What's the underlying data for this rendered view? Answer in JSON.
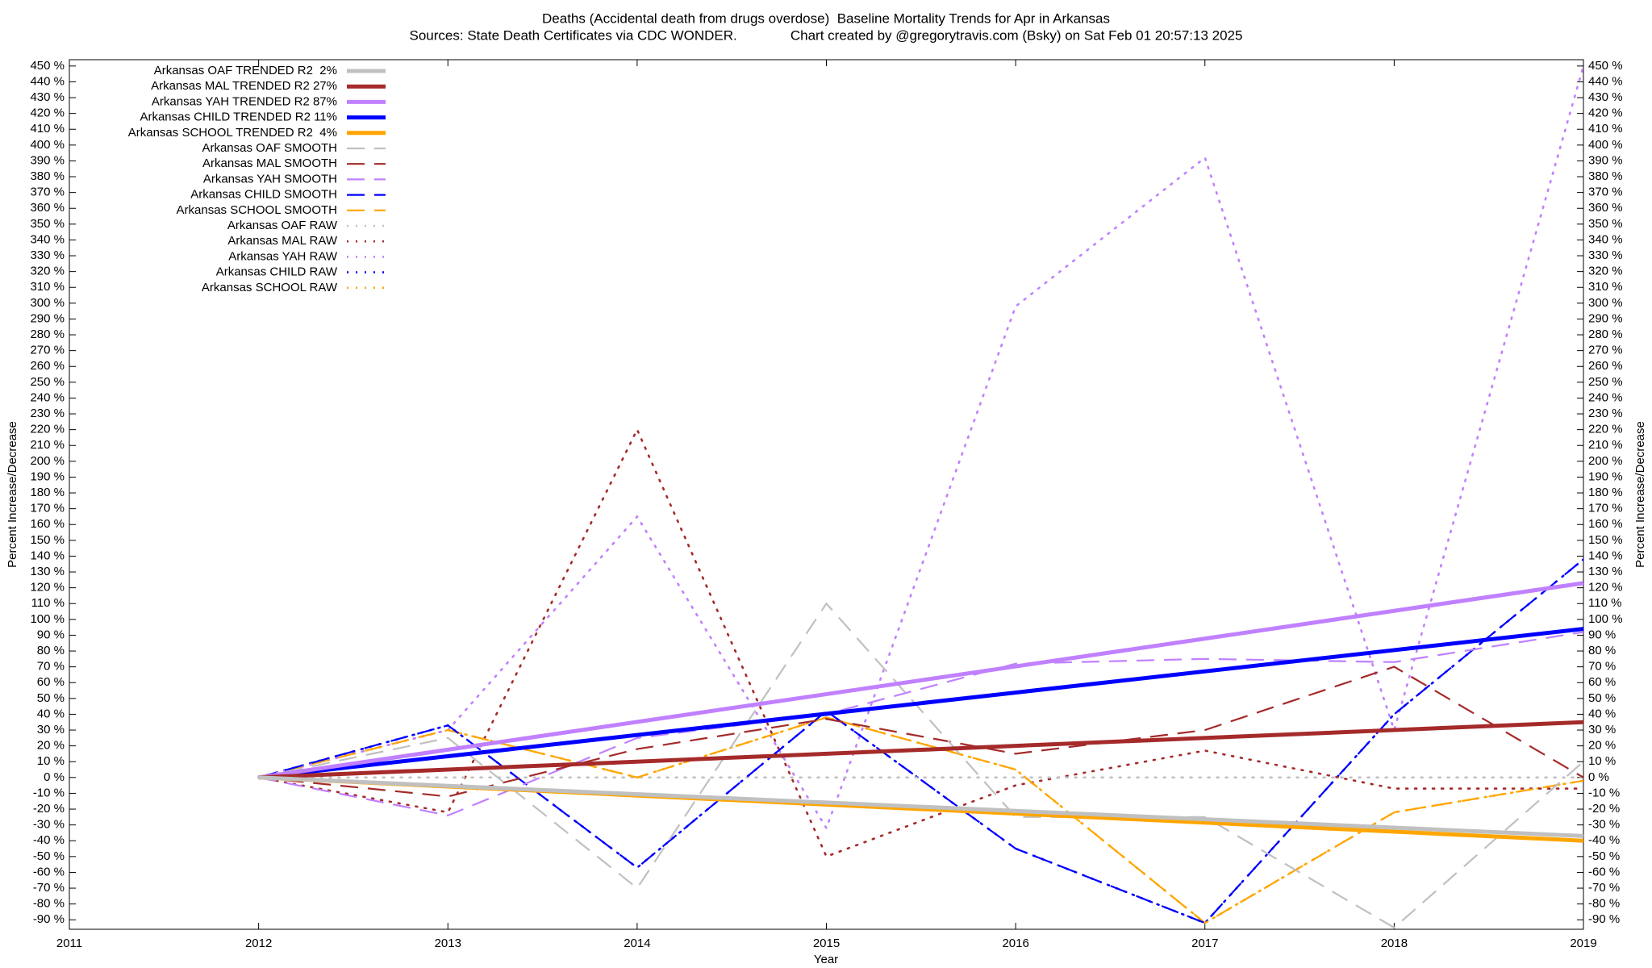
{
  "chart_data": {
    "type": "line",
    "title": "Deaths (Accidental death from drugs overdose)  Baseline Mortality Trends for Apr in Arkansas",
    "subtitle": "Sources: State Death Certificates via CDC WONDER.              Chart created by @gregorytravis.com (Bsky) on Sat Feb 01 20:57:13 2025",
    "xlabel": "Year",
    "ylabel": "Percent Increase/Decrease",
    "y2label": "Percent Increase/Decrease",
    "legend": "top-left",
    "grid": false,
    "xlim": [
      2011,
      2019
    ],
    "xticks": [
      2011,
      2012,
      2013,
      2014,
      2015,
      2016,
      2017,
      2018,
      2019
    ],
    "ylim": [
      -96,
      454
    ],
    "yticks": [
      {
        "value": -90,
        "label": "-90 %"
      },
      {
        "value": -80,
        "label": "-80 %"
      },
      {
        "value": -70,
        "label": "-70 %"
      },
      {
        "value": -60,
        "label": "-60 %"
      },
      {
        "value": -50,
        "label": "-50 %"
      },
      {
        "value": -40,
        "label": "-40 %"
      },
      {
        "value": -30,
        "label": "-30 %"
      },
      {
        "value": -20,
        "label": "-20 %"
      },
      {
        "value": -10,
        "label": "-10 %"
      },
      {
        "value": 0,
        "label": "0 %"
      },
      {
        "value": 10,
        "label": "10 %"
      },
      {
        "value": 20,
        "label": "20 %"
      },
      {
        "value": 30,
        "label": "30 %"
      },
      {
        "value": 40,
        "label": "40 %"
      },
      {
        "value": 50,
        "label": "50 %"
      },
      {
        "value": 60,
        "label": "60 %"
      },
      {
        "value": 70,
        "label": "70 %"
      },
      {
        "value": 80,
        "label": "80 %"
      },
      {
        "value": 90,
        "label": "90 %"
      },
      {
        "value": 100,
        "label": "100 %"
      },
      {
        "value": 110,
        "label": "110 %"
      },
      {
        "value": 120,
        "label": "120 %"
      },
      {
        "value": 130,
        "label": "130 %"
      },
      {
        "value": 140,
        "label": "140 %"
      },
      {
        "value": 150,
        "label": "150 %"
      },
      {
        "value": 160,
        "label": "160 %"
      },
      {
        "value": 170,
        "label": "170 %"
      },
      {
        "value": 180,
        "label": "180 %"
      },
      {
        "value": 190,
        "label": "190 %"
      },
      {
        "value": 200,
        "label": "200 %"
      },
      {
        "value": 210,
        "label": "210 %"
      },
      {
        "value": 220,
        "label": "220 %"
      },
      {
        "value": 230,
        "label": "230 %"
      },
      {
        "value": 240,
        "label": "240 %"
      },
      {
        "value": 250,
        "label": "250 %"
      },
      {
        "value": 260,
        "label": "260 %"
      },
      {
        "value": 270,
        "label": "270 %"
      },
      {
        "value": 280,
        "label": "280 %"
      },
      {
        "value": 290,
        "label": "290 %"
      },
      {
        "value": 300,
        "label": "300 %"
      },
      {
        "value": 310,
        "label": "310 %"
      },
      {
        "value": 320,
        "label": "320 %"
      },
      {
        "value": 330,
        "label": "330 %"
      },
      {
        "value": 340,
        "label": "340 %"
      },
      {
        "value": 350,
        "label": "350 %"
      },
      {
        "value": 360,
        "label": "360 %"
      },
      {
        "value": 370,
        "label": "370 %"
      },
      {
        "value": 380,
        "label": "380 %"
      },
      {
        "value": 390,
        "label": "390 %"
      },
      {
        "value": 400,
        "label": "400 %"
      },
      {
        "value": 410,
        "label": "410 %"
      },
      {
        "value": 420,
        "label": "420 %"
      },
      {
        "value": 430,
        "label": "430 %"
      },
      {
        "value": 440,
        "label": "440 %"
      },
      {
        "value": 450,
        "label": "450 %"
      }
    ],
    "y2lim": [
      -96,
      454
    ],
    "y2ticks": [
      {
        "value": -90,
        "label": "-90 %"
      },
      {
        "value": -80,
        "label": "-80 %"
      },
      {
        "value": -70,
        "label": "-70 %"
      },
      {
        "value": -60,
        "label": "-60 %"
      },
      {
        "value": -50,
        "label": "-50 %"
      },
      {
        "value": -40,
        "label": "-40 %"
      },
      {
        "value": -30,
        "label": "-30 %"
      },
      {
        "value": -20,
        "label": "-20 %"
      },
      {
        "value": -10,
        "label": "-10 %"
      },
      {
        "value": 0,
        "label": "0 %"
      },
      {
        "value": 10,
        "label": "10 %"
      },
      {
        "value": 20,
        "label": "20 %"
      },
      {
        "value": 30,
        "label": "30 %"
      },
      {
        "value": 40,
        "label": "40 %"
      },
      {
        "value": 50,
        "label": "50 %"
      },
      {
        "value": 60,
        "label": "60 %"
      },
      {
        "value": 70,
        "label": "70 %"
      },
      {
        "value": 80,
        "label": "80 %"
      },
      {
        "value": 90,
        "label": "90 %"
      },
      {
        "value": 100,
        "label": "100 %"
      },
      {
        "value": 110,
        "label": "110 %"
      },
      {
        "value": 120,
        "label": "120 %"
      },
      {
        "value": 130,
        "label": "130 %"
      },
      {
        "value": 140,
        "label": "140 %"
      },
      {
        "value": 150,
        "label": "150 %"
      },
      {
        "value": 160,
        "label": "160 %"
      },
      {
        "value": 170,
        "label": "170 %"
      },
      {
        "value": 180,
        "label": "180 %"
      },
      {
        "value": 190,
        "label": "190 %"
      },
      {
        "value": 200,
        "label": "200 %"
      },
      {
        "value": 210,
        "label": "210 %"
      },
      {
        "value": 220,
        "label": "220 %"
      },
      {
        "value": 230,
        "label": "230 %"
      },
      {
        "value": 240,
        "label": "240 %"
      },
      {
        "value": 250,
        "label": "250 %"
      },
      {
        "value": 260,
        "label": "260 %"
      },
      {
        "value": 270,
        "label": "270 %"
      },
      {
        "value": 280,
        "label": "280 %"
      },
      {
        "value": 290,
        "label": "290 %"
      },
      {
        "value": 300,
        "label": "300 %"
      },
      {
        "value": 310,
        "label": "310 %"
      },
      {
        "value": 320,
        "label": "320 %"
      },
      {
        "value": 330,
        "label": "330 %"
      },
      {
        "value": 340,
        "label": "340 %"
      },
      {
        "value": 350,
        "label": "350 %"
      },
      {
        "value": 360,
        "label": "360 %"
      },
      {
        "value": 370,
        "label": "370 %"
      },
      {
        "value": 380,
        "label": "380 %"
      },
      {
        "value": 390,
        "label": "390 %"
      },
      {
        "value": 400,
        "label": "400 %"
      },
      {
        "value": 410,
        "label": "410 %"
      },
      {
        "value": 420,
        "label": "420 %"
      },
      {
        "value": 430,
        "label": "430 %"
      },
      {
        "value": 440,
        "label": "440 %"
      },
      {
        "value": 450,
        "label": "450 %"
      }
    ],
    "series": [
      {
        "name": "Arkansas OAF TRENDED R2  2%",
        "color": "#c0c0c0",
        "dash": "solid",
        "x": [
          2012,
          2019
        ],
        "values": [
          0,
          -37
        ]
      },
      {
        "name": "Arkansas MAL TRENDED R2 27%",
        "color": "#a52a2a",
        "dash": "solid",
        "x": [
          2012,
          2019
        ],
        "values": [
          0,
          35
        ]
      },
      {
        "name": "Arkansas YAH TRENDED R2 87%",
        "color": "#c080ff",
        "dash": "solid",
        "x": [
          2012,
          2019
        ],
        "values": [
          0,
          123
        ]
      },
      {
        "name": "Arkansas CHILD TRENDED R2 11%",
        "color": "#0000ff",
        "dash": "solid",
        "x": [
          2012,
          2019
        ],
        "values": [
          0,
          94
        ]
      },
      {
        "name": "Arkansas SCHOOL TRENDED R2  4%",
        "color": "#ffa500",
        "dash": "solid",
        "x": [
          2012,
          2019
        ],
        "values": [
          0,
          -40
        ]
      },
      {
        "name": "Arkansas OAF SMOOTH",
        "color": "#c0c0c0",
        "dash": "dashed",
        "x": [
          2012,
          2013,
          2014,
          2015,
          2016,
          2017,
          2018,
          2019
        ],
        "values": [
          0,
          25,
          -70,
          110,
          -25,
          -25,
          -95,
          10
        ]
      },
      {
        "name": "Arkansas MAL SMOOTH",
        "color": "#a52a2a",
        "dash": "dashed",
        "x": [
          2012,
          2013,
          2014,
          2015,
          2016,
          2017,
          2018,
          2019
        ],
        "values": [
          0,
          -12,
          18,
          37,
          15,
          30,
          70,
          0
        ]
      },
      {
        "name": "Arkansas YAH SMOOTH",
        "color": "#c080ff",
        "dash": "dashed",
        "x": [
          2012,
          2013,
          2014,
          2015,
          2016,
          2017,
          2018,
          2019
        ],
        "values": [
          0,
          -24,
          25,
          40,
          72,
          75,
          73,
          92
        ]
      },
      {
        "name": "Arkansas CHILD SMOOTH",
        "color": "#0000ff",
        "dash": "dashed",
        "x": [
          2012,
          2013,
          2014,
          2015,
          2016,
          2017,
          2018,
          2019
        ],
        "values": [
          0,
          33,
          -57,
          42,
          -45,
          -92,
          40,
          138
        ]
      },
      {
        "name": "Arkansas SCHOOL SMOOTH",
        "color": "#ffa500",
        "dash": "dashed",
        "x": [
          2012,
          2013,
          2014,
          2015,
          2016,
          2017,
          2018,
          2019
        ],
        "values": [
          0,
          30,
          0,
          38,
          5,
          -92,
          -22,
          -2
        ]
      },
      {
        "name": "Arkansas OAF RAW",
        "color": "#c0c0c0",
        "dash": "dotted",
        "x": [
          2012,
          2013,
          2014,
          2015,
          2016,
          2017,
          2018,
          2019
        ],
        "values": [
          0,
          0,
          0,
          0,
          0,
          0,
          0,
          0
        ]
      },
      {
        "name": "Arkansas MAL RAW",
        "color": "#a52a2a",
        "dash": "dotted",
        "x": [
          2012,
          2013,
          2014,
          2015,
          2016,
          2017,
          2018,
          2019
        ],
        "values": [
          0,
          -22,
          220,
          -50,
          -5,
          17,
          -7,
          -7
        ]
      },
      {
        "name": "Arkansas YAH RAW",
        "color": "#c080ff",
        "dash": "dotted",
        "x": [
          2012,
          2013,
          2014,
          2015,
          2016,
          2017,
          2018,
          2019
        ],
        "values": [
          0,
          30,
          165,
          -32,
          298,
          392,
          30,
          450
        ]
      },
      {
        "name": "Arkansas CHILD RAW",
        "color": "#0000ff",
        "dash": "dotted",
        "x": [
          2012,
          2013,
          2014,
          2015,
          2016,
          2017,
          2018,
          2019
        ],
        "values": [
          0,
          33,
          -57,
          42,
          -45,
          -92,
          40,
          138
        ]
      },
      {
        "name": "Arkansas SCHOOL RAW",
        "color": "#ffa500",
        "dash": "dotted",
        "x": [
          2012,
          2013,
          2014,
          2015,
          2016,
          2017,
          2018,
          2019
        ],
        "values": [
          0,
          30,
          0,
          38,
          5,
          -92,
          -22,
          -2
        ]
      }
    ]
  }
}
